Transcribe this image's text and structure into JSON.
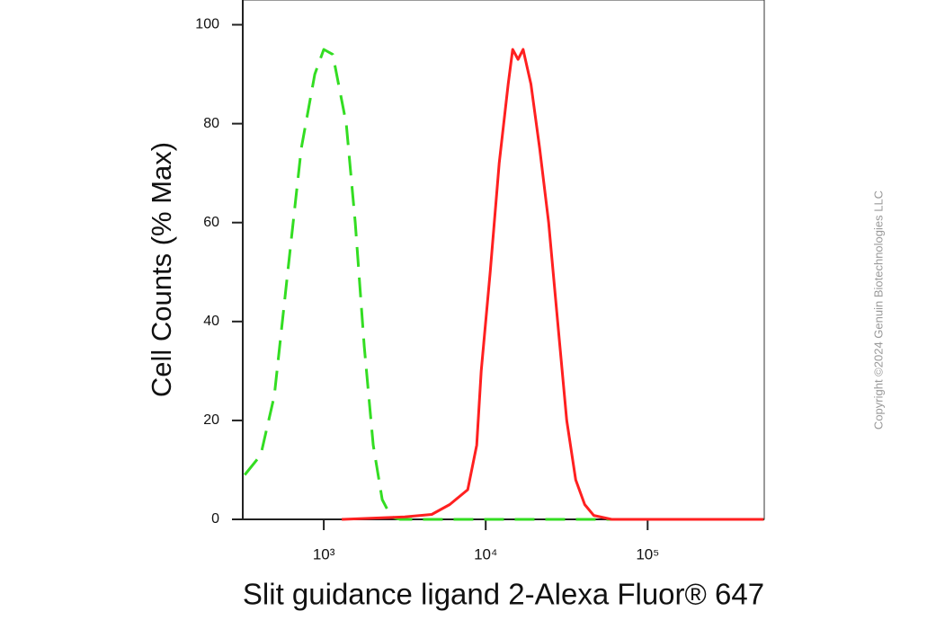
{
  "chart_data": {
    "type": "line",
    "xlabel": "Slit guidance ligand 2-Alexa Fluor® 647",
    "ylabel": "Cell Counts (% Max)",
    "watermark": "Copyright ©2024 Genuin Biotechnologies LLC",
    "xscale": "log",
    "xlim": [
      316,
      525000
    ],
    "ylim": [
      0,
      105
    ],
    "xticks": [
      {
        "value": 1000,
        "label": "10³"
      },
      {
        "value": 10000,
        "label": "10⁴"
      },
      {
        "value": 100000,
        "label": "10⁵"
      }
    ],
    "yticks": [
      0,
      20,
      40,
      60,
      80,
      100
    ],
    "series": [
      {
        "color": "#33dd22",
        "line_style": "dashed",
        "x": [
          325,
          408,
          495,
          599,
          726,
          880,
          1000,
          1136,
          1377,
          1565,
          1778,
          2021,
          2297,
          2610,
          2966,
          21544,
          520000
        ],
        "values": [
          9,
          13,
          25,
          50,
          75,
          90,
          95,
          94,
          80,
          60,
          35,
          15,
          4,
          0.5,
          0,
          0,
          0
        ]
      },
      {
        "color": "#ff2020",
        "line_style": "solid",
        "x": [
          1292,
          3162,
          4642,
          5995,
          7743,
          8799,
          9380,
          10661,
          12115,
          13767,
          14678,
          15849,
          17013,
          19011,
          21544,
          24484,
          27826,
          31623,
          35938,
          40842,
          46416,
          59948,
          520000
        ],
        "values": [
          0,
          0.5,
          1,
          3,
          6,
          15,
          30,
          50,
          72,
          88,
          95,
          93,
          95,
          88,
          75,
          60,
          40,
          20,
          8,
          3,
          0.8,
          0,
          0
        ]
      }
    ]
  }
}
